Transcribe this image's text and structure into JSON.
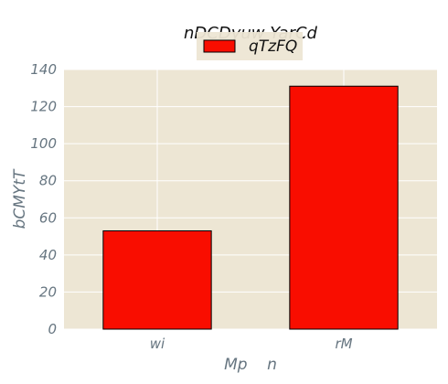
{
  "chart_data": {
    "type": "bar",
    "title": "nDCDyuw  YarCd",
    "xlabel": "Mp    n",
    "ylabel": "bCMYtT",
    "categories": [
      "wi",
      "rM"
    ],
    "series": [
      {
        "name": "qTzFQ",
        "values": [
          53,
          131
        ],
        "color": "#f90d00"
      }
    ],
    "ylim": [
      0,
      140
    ],
    "yticks": [
      0,
      20,
      40,
      60,
      80,
      100,
      120,
      140
    ],
    "grid": true,
    "legend_position": "top-center",
    "colors": {
      "plot_background": "#ede6d4",
      "grid": "#ffffff",
      "bar_edge": "#000000",
      "tick_text": "#667580"
    }
  }
}
